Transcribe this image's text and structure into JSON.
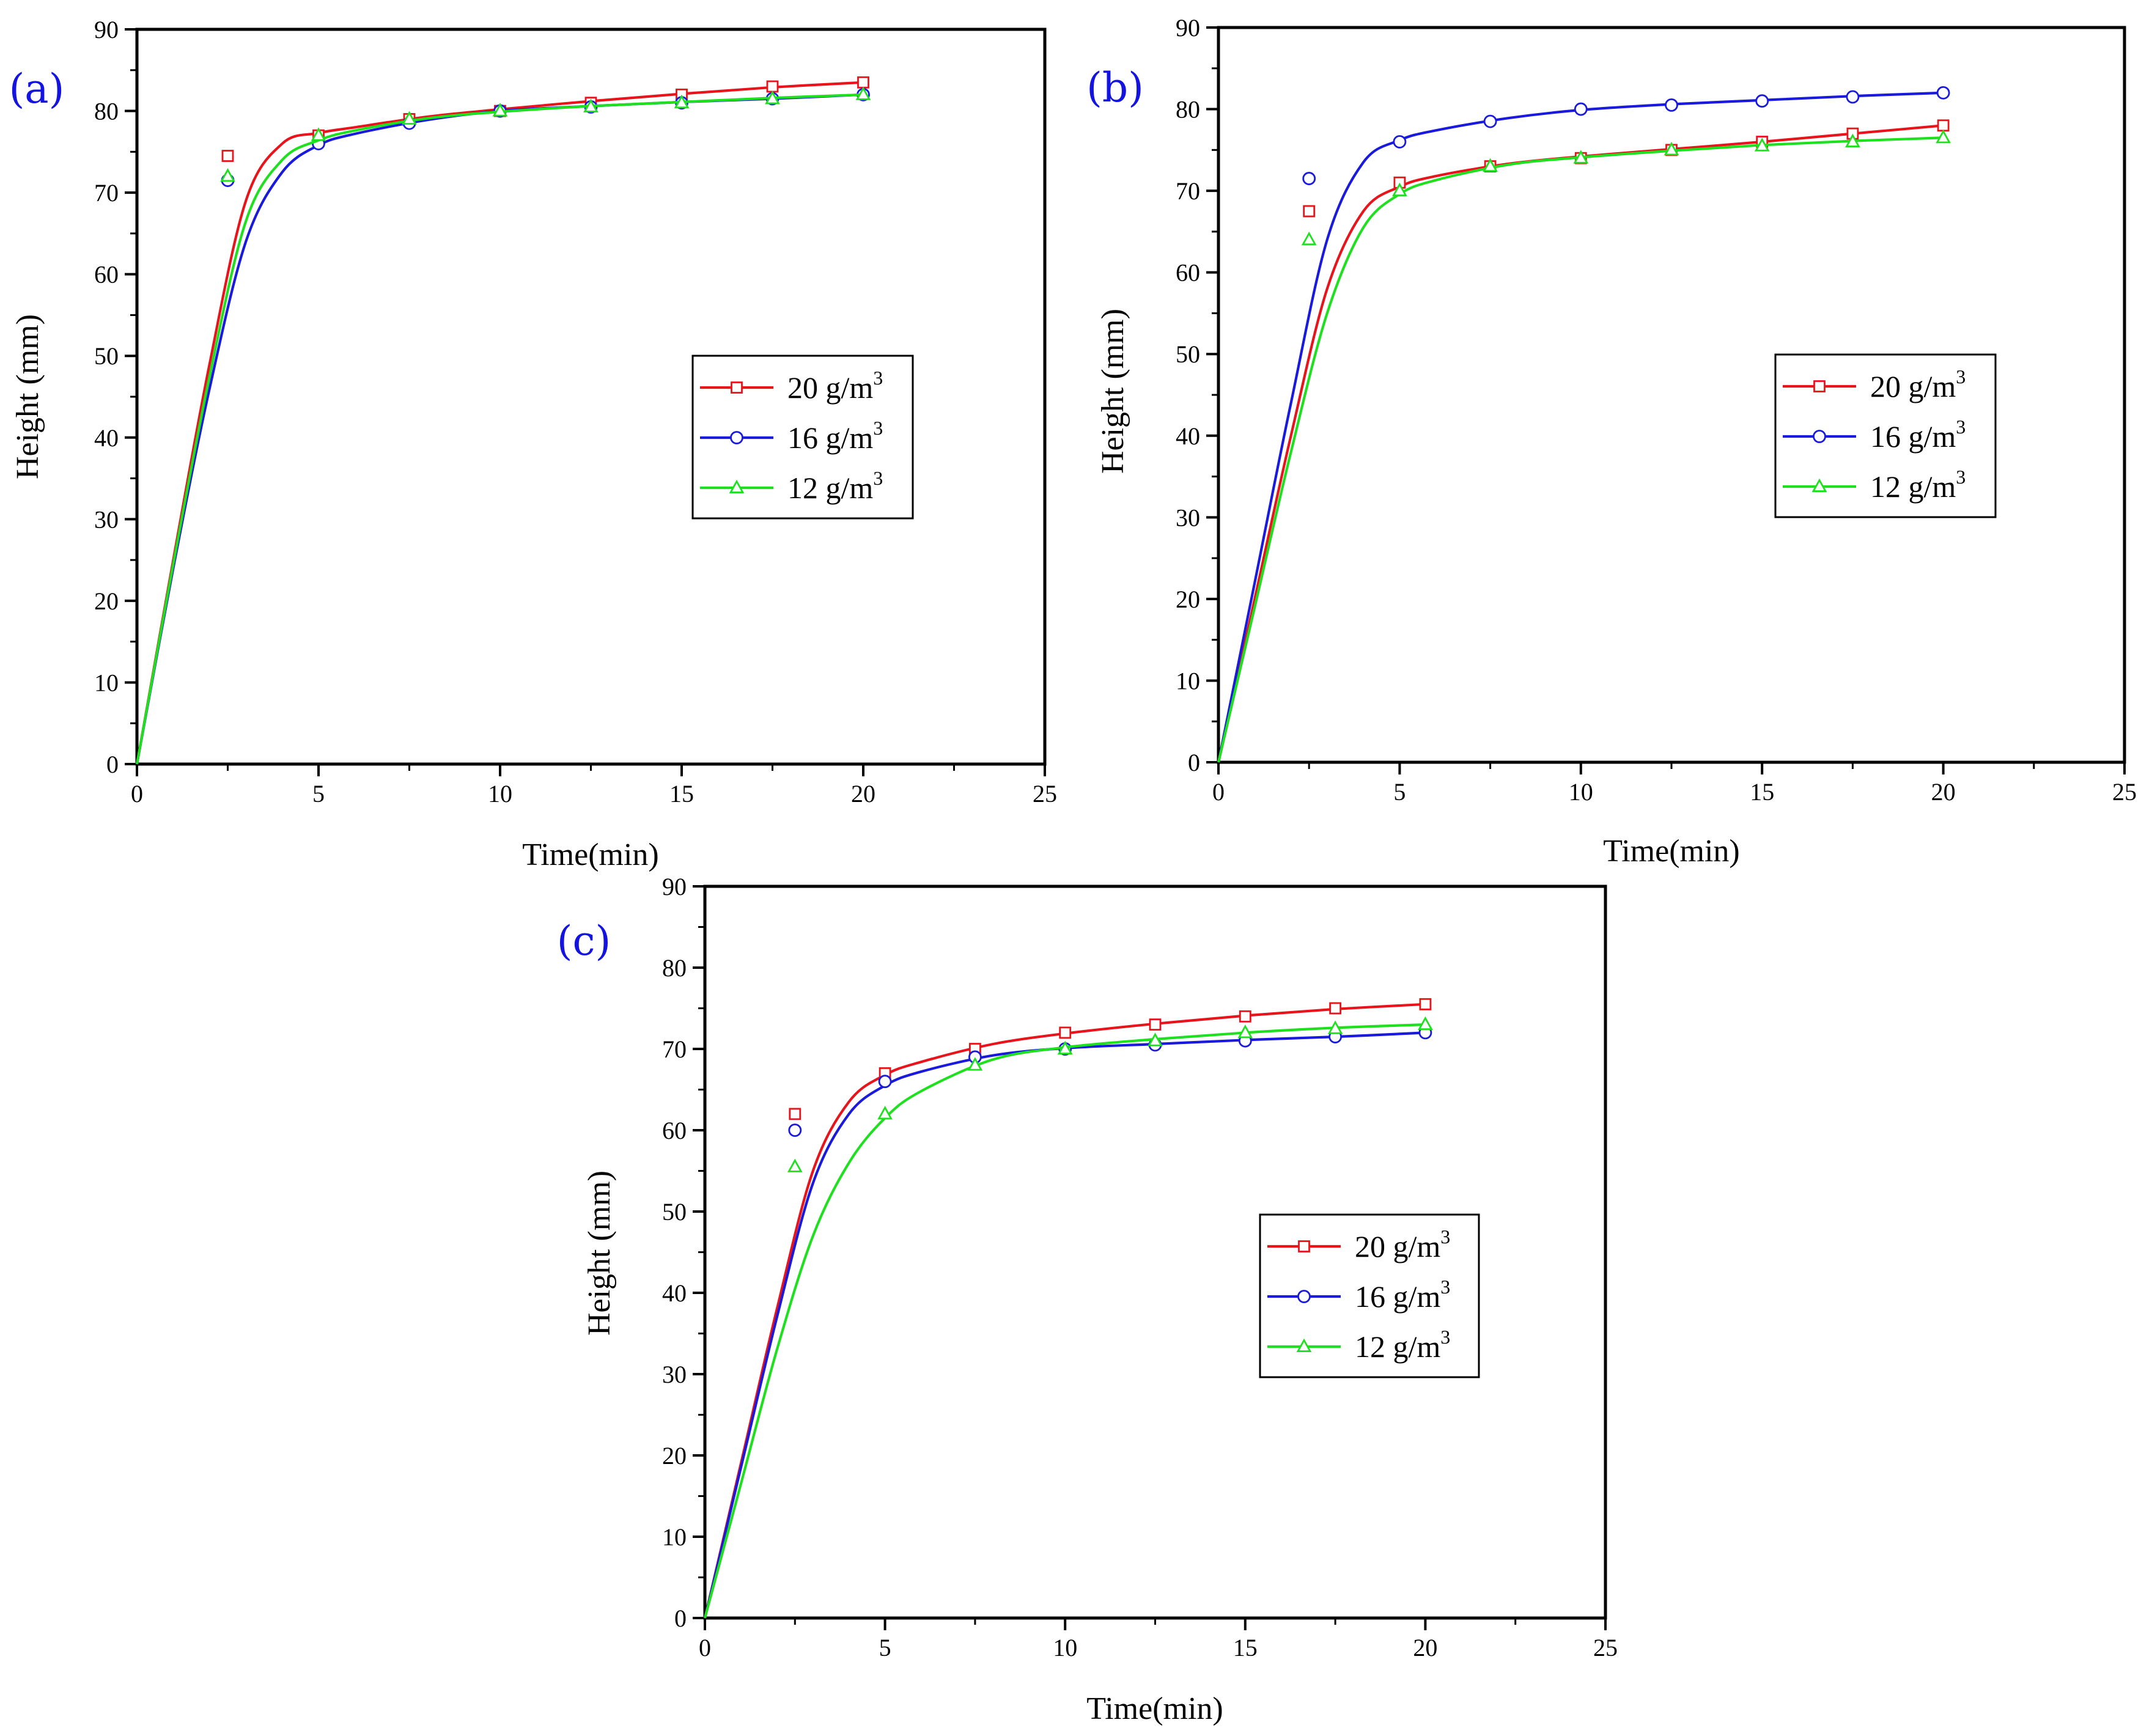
{
  "figure": {
    "colors": {
      "series_20": "#e8141c",
      "series_16": "#1a1adc",
      "series_12": "#1fe01f",
      "panel_tag": "#1414e0",
      "axis": "#000000"
    }
  },
  "chart_data": [
    {
      "id": "a",
      "panel_label": "(a)",
      "type": "line",
      "xlabel": "Time(min)",
      "ylabel": "Height (mm)",
      "xlim": [
        0,
        25
      ],
      "ylim": [
        0,
        90
      ],
      "xticks": [
        "0",
        "5",
        "10",
        "15",
        "20",
        "25"
      ],
      "yticks": [
        "0",
        "10",
        "20",
        "30",
        "40",
        "50",
        "60",
        "70",
        "80",
        "90"
      ],
      "legend_position": "center-right",
      "series": [
        {
          "key": "s20",
          "name": "20 g/m",
          "sup": "3",
          "color": "#e8141c",
          "marker": "square",
          "x": [
            2.5,
            5,
            7.5,
            10,
            12.5,
            15,
            17.5,
            20
          ],
          "values": [
            74.5,
            77.0,
            79.0,
            80.0,
            81.0,
            82.0,
            83.0,
            83.5
          ],
          "curve": {
            "x": [
              0,
              1,
              2,
              3,
              4,
              5,
              6,
              8,
              10,
              12.5,
              15,
              17.5,
              20
            ],
            "y": [
              0,
              25,
              49,
              69,
              76,
              77.3,
              78,
              79.3,
              80.2,
              81.2,
              82.1,
              82.9,
              83.5
            ]
          }
        },
        {
          "key": "s16",
          "name": "16 g/m",
          "sup": "3",
          "color": "#1a1adc",
          "marker": "circle",
          "x": [
            2.5,
            5,
            7.5,
            10,
            12.5,
            15,
            17.5,
            20
          ],
          "values": [
            71.5,
            76.0,
            78.5,
            80.0,
            80.5,
            81.0,
            81.5,
            82.0
          ],
          "curve": {
            "x": [
              0,
              1,
              2,
              3,
              4,
              5,
              6,
              8,
              10,
              12.5,
              15,
              17.5,
              20
            ],
            "y": [
              0,
              24,
              46,
              64,
              72.5,
              75.8,
              77.2,
              78.9,
              80.0,
              80.6,
              81.1,
              81.5,
              82.0
            ]
          }
        },
        {
          "key": "s12",
          "name": "12 g/m",
          "sup": "3",
          "color": "#1fe01f",
          "marker": "triangle",
          "x": [
            2.5,
            5,
            7.5,
            10,
            12.5,
            15,
            17.5,
            20
          ],
          "values": [
            72.0,
            77.0,
            79.0,
            80.0,
            80.5,
            81.0,
            81.5,
            82.0
          ],
          "curve": {
            "x": [
              0,
              1,
              2,
              3,
              4,
              5,
              6,
              8,
              10,
              12.5,
              15,
              17.5,
              20
            ],
            "y": [
              0,
              24.5,
              47.5,
              66.5,
              74,
              76.4,
              77.6,
              79.1,
              79.9,
              80.6,
              81.1,
              81.6,
              82.0
            ]
          }
        }
      ]
    },
    {
      "id": "b",
      "panel_label": "(b)",
      "type": "line",
      "xlabel": "Time(min)",
      "ylabel": "Height (mm)",
      "xlim": [
        0,
        25
      ],
      "ylim": [
        0,
        90
      ],
      "xticks": [
        "0",
        "5",
        "10",
        "15",
        "20",
        "25"
      ],
      "yticks": [
        "0",
        "10",
        "20",
        "30",
        "40",
        "50",
        "60",
        "70",
        "80",
        "90"
      ],
      "legend_position": "center-right",
      "series": [
        {
          "key": "s20",
          "name": "20 g/m",
          "sup": "3",
          "color": "#e8141c",
          "marker": "square",
          "x": [
            2.5,
            5,
            7.5,
            10,
            12.5,
            15,
            17.5,
            20
          ],
          "values": [
            67.5,
            71.0,
            73.0,
            74.0,
            75.0,
            76.0,
            77.0,
            78.0
          ],
          "curve": {
            "x": [
              0,
              1,
              2,
              3,
              4,
              5,
              6,
              8,
              10,
              12.5,
              15,
              17.5,
              20
            ],
            "y": [
              0,
              20,
              40,
              58,
              67.5,
              70.5,
              71.8,
              73.3,
              74.2,
              75.1,
              76.0,
              77.0,
              78.0
            ]
          }
        },
        {
          "key": "s16",
          "name": "16 g/m",
          "sup": "3",
          "color": "#1a1adc",
          "marker": "circle",
          "x": [
            2.5,
            5,
            7.5,
            10,
            12.5,
            15,
            17.5,
            20
          ],
          "values": [
            71.5,
            76.0,
            78.5,
            80.0,
            80.5,
            81.0,
            81.5,
            82.0
          ],
          "curve": {
            "x": [
              0,
              1,
              2,
              3,
              4,
              5,
              6,
              8,
              10,
              12.5,
              15,
              17.5,
              20
            ],
            "y": [
              0,
              22,
              44,
              64,
              73.5,
              76.2,
              77.4,
              78.9,
              79.9,
              80.6,
              81.1,
              81.6,
              82.0
            ]
          }
        },
        {
          "key": "s12",
          "name": "12 g/m",
          "sup": "3",
          "color": "#1fe01f",
          "marker": "triangle",
          "x": [
            2.5,
            5,
            7.5,
            10,
            12.5,
            15,
            17.5,
            20
          ],
          "values": [
            64.0,
            70.0,
            73.0,
            74.0,
            75.0,
            75.5,
            76.0,
            76.5
          ],
          "curve": {
            "x": [
              0,
              1,
              2,
              3,
              4,
              5,
              6,
              8,
              10,
              12.5,
              15,
              17.5,
              20
            ],
            "y": [
              0,
              19,
              38,
              55,
              65.5,
              69.6,
              71.3,
              73.2,
              74.1,
              74.9,
              75.6,
              76.1,
              76.5
            ]
          }
        }
      ]
    },
    {
      "id": "c",
      "panel_label": "(c)",
      "type": "line",
      "xlabel": "Time(min)",
      "ylabel": "Height (mm)",
      "xlim": [
        0,
        25
      ],
      "ylim": [
        0,
        90
      ],
      "xticks": [
        "0",
        "5",
        "10",
        "15",
        "20",
        "25"
      ],
      "yticks": [
        "0",
        "10",
        "20",
        "30",
        "40",
        "50",
        "60",
        "70",
        "80",
        "90"
      ],
      "legend_position": "center-right",
      "series": [
        {
          "key": "s20",
          "name": "20 g/m",
          "sup": "3",
          "color": "#e8141c",
          "marker": "square",
          "x": [
            2.5,
            5,
            7.5,
            10,
            12.5,
            15,
            17.5,
            20
          ],
          "values": [
            62.0,
            67.0,
            70.0,
            72.0,
            73.0,
            74.0,
            75.0,
            75.5
          ],
          "curve": {
            "x": [
              0,
              1,
              2,
              3,
              4,
              5,
              6,
              8,
              10,
              12.5,
              15,
              17.5,
              20
            ],
            "y": [
              0,
              19,
              38,
              55,
              63.5,
              66.8,
              68.4,
              70.6,
              71.9,
              73.1,
              74.1,
              74.9,
              75.5
            ]
          }
        },
        {
          "key": "s16",
          "name": "16 g/m",
          "sup": "3",
          "color": "#1a1adc",
          "marker": "circle",
          "x": [
            2.5,
            5,
            7.5,
            10,
            12.5,
            15,
            17.5,
            20
          ],
          "values": [
            60.0,
            66.0,
            69.0,
            70.0,
            70.5,
            71.0,
            71.5,
            72.0
          ],
          "curve": {
            "x": [
              0,
              1,
              2,
              3,
              4,
              5,
              6,
              8,
              10,
              12.5,
              15,
              17.5,
              20
            ],
            "y": [
              0,
              18.5,
              37,
              53.5,
              62,
              65.5,
              67.2,
              69.2,
              70.1,
              70.6,
              71.1,
              71.5,
              72.0
            ]
          }
        },
        {
          "key": "s12",
          "name": "12 g/m",
          "sup": "3",
          "color": "#1fe01f",
          "marker": "triangle",
          "x": [
            2.5,
            5,
            7.5,
            10,
            12.5,
            15,
            17.5,
            20
          ],
          "values": [
            55.5,
            62.0,
            68.0,
            70.0,
            71.0,
            72.0,
            72.5,
            73.0
          ],
          "curve": {
            "x": [
              0,
              1,
              2,
              3,
              4,
              5,
              6,
              8,
              10,
              12.5,
              15,
              17.5,
              20
            ],
            "y": [
              0,
              16.5,
              33,
              47,
              56,
              61.5,
              64.8,
              68.7,
              70.2,
              71.2,
              72.0,
              72.6,
              73.0
            ]
          }
        }
      ]
    }
  ]
}
